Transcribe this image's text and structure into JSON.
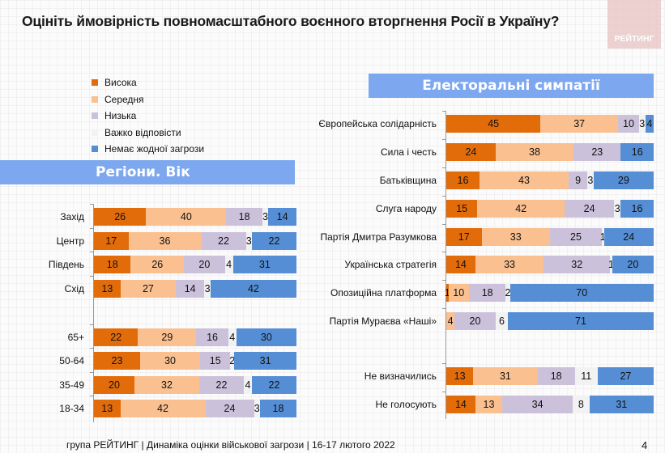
{
  "header": {
    "title": "Оцініть ймовірність повномасштабного воєнного вторгнення Росії в Україну?",
    "brand": "РЕЙТИНГ"
  },
  "footer": {
    "text": "група РЕЙТИНГ |  Динаміка оцінки військової загрози | 16-17 лютого 2022",
    "page": "4"
  },
  "colors": {
    "high": "#e36c0a",
    "medium": "#fac090",
    "low": "#ccc1da",
    "hard": "#f2f2f2",
    "none": "#558ed5"
  },
  "chart_data": [
    {
      "type": "bar",
      "orientation": "horizontal-stacked-100",
      "title": "Регіони. Вік",
      "legend": [
        "Висока",
        "Середня",
        "Низька",
        "Важко відповісти",
        "Немає жодної загрози"
      ],
      "legend_position": "top-left",
      "categories": [
        "Захід",
        "Центр",
        "Південь",
        "Схід",
        "65+",
        "50-64",
        "35-49",
        "18-34"
      ],
      "series": [
        {
          "name": "Висока",
          "values": [
            26,
            17,
            18,
            13,
            22,
            23,
            20,
            13
          ]
        },
        {
          "name": "Середня",
          "values": [
            40,
            36,
            26,
            27,
            29,
            30,
            32,
            42
          ]
        },
        {
          "name": "Низька",
          "values": [
            18,
            22,
            20,
            14,
            16,
            15,
            22,
            24
          ]
        },
        {
          "name": "Важко відповісти",
          "values": [
            3,
            3,
            4,
            3,
            4,
            2,
            4,
            3
          ]
        },
        {
          "name": "Немає жодної загрози",
          "values": [
            14,
            22,
            31,
            42,
            30,
            31,
            22,
            18
          ]
        }
      ],
      "groups": [
        [
          0,
          1,
          2,
          3
        ],
        [
          4,
          5,
          6,
          7
        ]
      ]
    },
    {
      "type": "bar",
      "orientation": "horizontal-stacked-100",
      "title": "Електоральні симпатії",
      "legend": [
        "Висока",
        "Середня",
        "Низька",
        "Важко відповісти",
        "Немає жодної загрози"
      ],
      "categories": [
        "Європейська солідарність",
        "Сила і честь",
        "Батьківщина",
        "Слуга народу",
        "Партія Дмитра Разумкова",
        "Українська стратегія",
        "Опозиційна платформа",
        "Партія Мураєва «Наші»",
        "Не визначились",
        "Не голосують"
      ],
      "series": [
        {
          "name": "Висока",
          "values": [
            45,
            24,
            16,
            15,
            17,
            14,
            1,
            0,
            13,
            14
          ]
        },
        {
          "name": "Середня",
          "values": [
            37,
            38,
            43,
            42,
            33,
            33,
            10,
            4,
            31,
            13
          ]
        },
        {
          "name": "Низька",
          "values": [
            10,
            23,
            9,
            24,
            25,
            32,
            18,
            20,
            18,
            34
          ]
        },
        {
          "name": "Важко відповісти",
          "values": [
            3,
            0,
            3,
            3,
            1,
            1,
            2,
            6,
            11,
            8
          ]
        },
        {
          "name": "Немає жодної загрози",
          "values": [
            4,
            16,
            29,
            16,
            24,
            20,
            70,
            71,
            27,
            31
          ]
        }
      ],
      "groups": [
        [
          0,
          1,
          2,
          3,
          4,
          5,
          6,
          7
        ],
        [
          8,
          9
        ]
      ]
    }
  ]
}
